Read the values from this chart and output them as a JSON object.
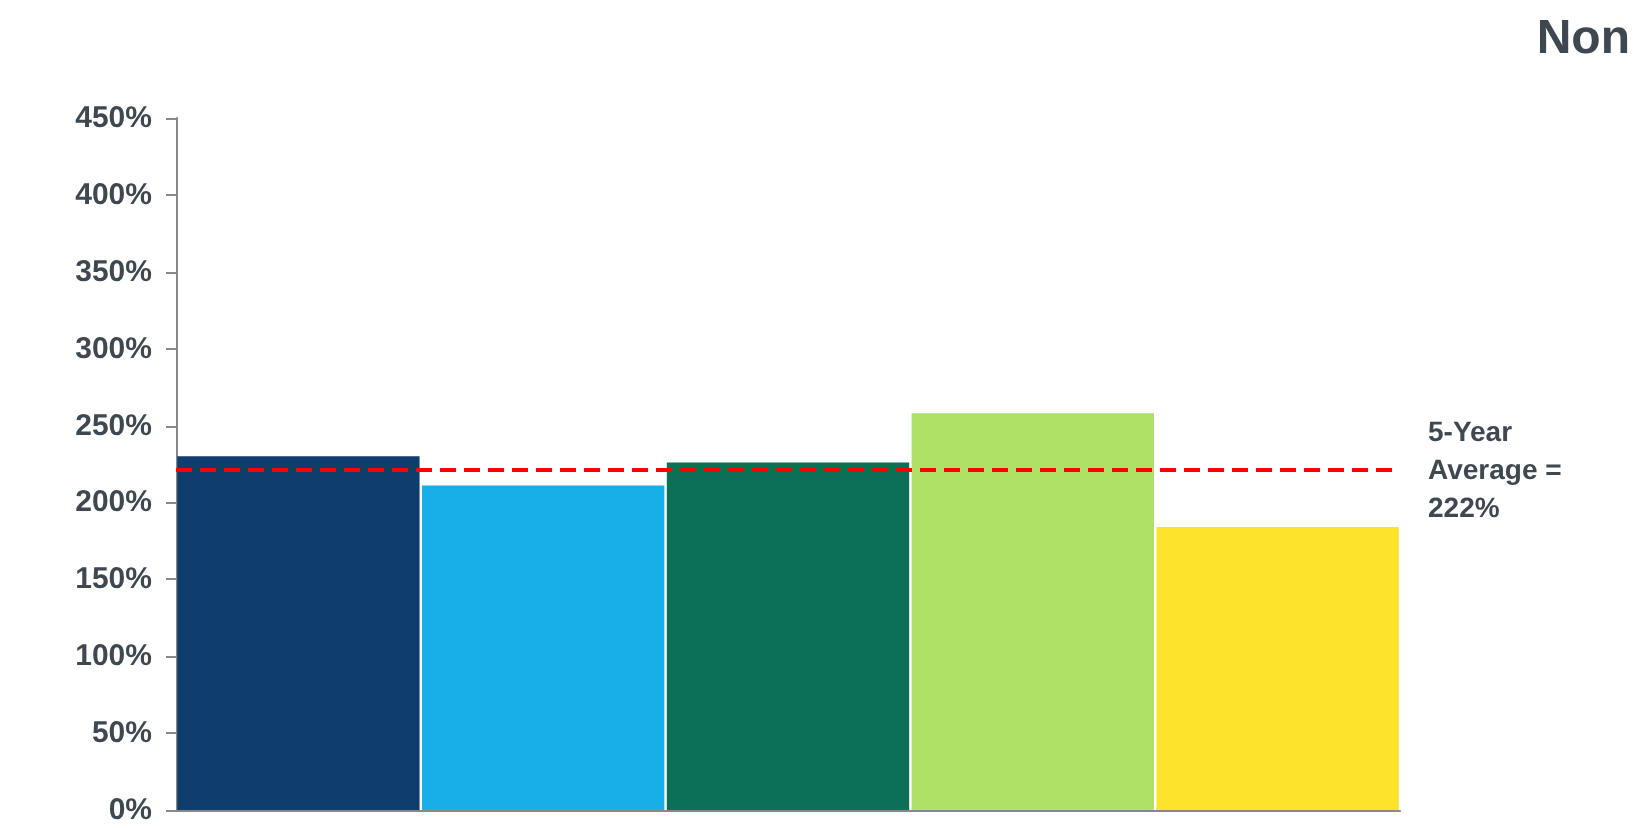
{
  "chart_data": {
    "type": "bar",
    "title": "Non",
    "categories": [
      null,
      null,
      null,
      null,
      null
    ],
    "values": [
      230,
      211,
      226,
      258,
      184
    ],
    "colors": [
      "#0e3d6e",
      "#18aee8",
      "#0b7055",
      "#aee066",
      "#fde22c"
    ],
    "ylim": [
      0,
      450
    ],
    "yticks": [
      {
        "value": 0,
        "label": "0%"
      },
      {
        "value": 50,
        "label": "50%"
      },
      {
        "value": 100,
        "label": "100%"
      },
      {
        "value": 150,
        "label": "150%"
      },
      {
        "value": 200,
        "label": "200%"
      },
      {
        "value": 250,
        "label": "250%"
      },
      {
        "value": 300,
        "label": "300%"
      },
      {
        "value": 350,
        "label": "350%"
      },
      {
        "value": 400,
        "label": "400%"
      },
      {
        "value": 450,
        "label": "450%"
      }
    ],
    "ref_lines": [
      {
        "axis": "y",
        "value": 222,
        "label": "5-Year Average = 222%",
        "color": "#ff0000",
        "line_style": "dashed"
      }
    ],
    "grid": false
  }
}
